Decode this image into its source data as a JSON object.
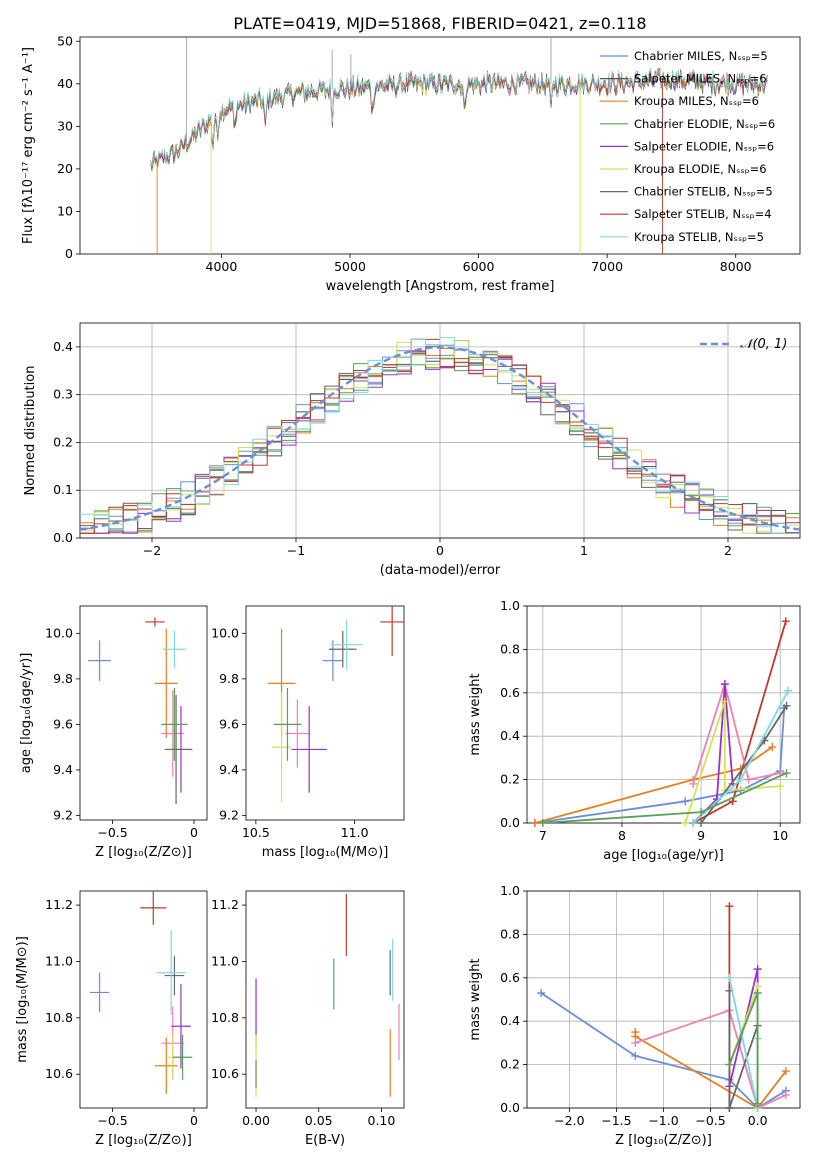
{
  "figure_title": "PLATE=0419, MJD=51868, FIBERID=0421, z=0.118",
  "colors": {
    "spectra": [
      "#6a8fd6",
      "#555555",
      "#e67e22",
      "#5a9e5a",
      "#9b30c8",
      "#d4e157",
      "#666666",
      "#c0392b",
      "#7fd8e0"
    ],
    "params": [
      "#6a8fd6",
      "#e67e22",
      "#c0392b",
      "#ee82b0",
      "#9b30c8",
      "#d4e157",
      "#666666",
      "#7fd8e0",
      "#5a9e5a"
    ],
    "gauss": "#6a8fd6"
  },
  "chart_data": [
    {
      "type": "line",
      "name": "spectrum",
      "title": "PLATE=0419, MJD=51868, FIBERID=0421, z=0.118",
      "xlabel": "wavelength [Angstrom, rest frame]",
      "ylabel": "Flux [fλ10⁻¹⁷ erg cm⁻² s⁻¹ A⁻¹]",
      "xlim": [
        2900,
        8500
      ],
      "ylim": [
        0,
        51
      ],
      "xticks": [
        4000,
        5000,
        6000,
        7000,
        8000
      ],
      "yticks": [
        0,
        10,
        20,
        30,
        40,
        50
      ],
      "grid": false,
      "legend_position": "upper-right",
      "series": [
        {
          "name": "Chabrier MILES, N_SSP=5"
        },
        {
          "name": "Salpeter MILES, N_SSP=6"
        },
        {
          "name": "Kroupa MILES, N_SSP=6"
        },
        {
          "name": "Chabrier ELODIE, N_SSP=6"
        },
        {
          "name": "Salpeter ELODIE, N_SSP=6"
        },
        {
          "name": "Kroupa ELODIE, N_SSP=6"
        },
        {
          "name": "Chabrier STELIB, N_SSP=5"
        },
        {
          "name": "Salpeter STELIB, N_SSP=4"
        },
        {
          "name": "Kroupa STELIB, N_SSP=5"
        }
      ],
      "continuum_points": [
        [
          3450,
          21
        ],
        [
          3650,
          24
        ],
        [
          3900,
          31
        ],
        [
          4000,
          34
        ],
        [
          4300,
          36
        ],
        [
          4600,
          38
        ],
        [
          5000,
          39
        ],
        [
          5500,
          40
        ],
        [
          6000,
          40
        ],
        [
          6500,
          40
        ],
        [
          7000,
          40
        ],
        [
          7500,
          41
        ],
        [
          8000,
          40
        ],
        [
          8250,
          40
        ]
      ]
    },
    {
      "type": "bar",
      "name": "residual-histograms",
      "xlabel": "(data-model)/error",
      "ylabel": "Normed distribution",
      "xlim": [
        -2.5,
        2.5
      ],
      "ylim": [
        0,
        0.45
      ],
      "xticks": [
        -2,
        -1,
        0,
        1,
        2
      ],
      "yticks": [
        0.0,
        0.1,
        0.2,
        0.3,
        0.4
      ],
      "grid": true,
      "legend": "𝒩(0, 1)",
      "legend_position": "upper-right",
      "bin_width": 0.1,
      "bins_from": -2.5
    },
    {
      "type": "scatter",
      "name": "age-vs-Z",
      "xlabel": "Z [log₁₀(Z/Z⊙)]",
      "ylabel": "age  [log₁₀(age/yr)]",
      "xlim": [
        -0.7,
        0.08
      ],
      "ylim": [
        9.18,
        10.12
      ],
      "xticks": [
        -0.5,
        0.0
      ],
      "yticks": [
        9.2,
        9.4,
        9.6,
        9.8,
        10.0
      ],
      "points": [
        {
          "x": -0.58,
          "y": 9.88,
          "xerr": 0.07,
          "yerr": 0.09
        },
        {
          "x": -0.17,
          "y": 9.78,
          "xerr": 0.07,
          "yerr": 0.24
        },
        {
          "x": -0.24,
          "y": 10.05,
          "xerr": 0.06,
          "yerr": 0.02
        },
        {
          "x": -0.13,
          "y": 9.56,
          "xerr": 0.07,
          "yerr": 0.19
        },
        {
          "x": -0.08,
          "y": 9.49,
          "xerr": 0.07,
          "yerr": 0.19
        },
        {
          "x": -0.12,
          "y": 9.6,
          "xerr": 0.03,
          "yerr": 0.15
        },
        {
          "x": -0.11,
          "y": 9.49,
          "xerr": 0.07,
          "yerr": 0.24
        },
        {
          "x": -0.12,
          "y": 9.93,
          "xerr": 0.07,
          "yerr": 0.08
        },
        {
          "x": -0.12,
          "y": 9.6,
          "xerr": 0.08,
          "yerr": 0.16
        }
      ]
    },
    {
      "type": "scatter",
      "name": "age-vs-mass",
      "xlabel": "mass [log₁₀(M/M⊙)]",
      "ylabel": "",
      "xlim": [
        10.45,
        11.25
      ],
      "ylim": [
        9.18,
        10.12
      ],
      "xticks": [
        10.5,
        11.0
      ],
      "yticks": [
        9.2,
        9.4,
        9.6,
        9.8,
        10.0
      ],
      "points": [
        {
          "x": 10.89,
          "y": 9.88,
          "xerr": 0.05,
          "yerr": 0.09
        },
        {
          "x": 10.63,
          "y": 9.78,
          "xerr": 0.07,
          "yerr": 0.24
        },
        {
          "x": 11.19,
          "y": 10.05,
          "xerr": 0.06,
          "yerr": 0.15
        },
        {
          "x": 10.71,
          "y": 9.56,
          "xerr": 0.06,
          "yerr": 0.15
        },
        {
          "x": 10.77,
          "y": 9.49,
          "xerr": 0.09,
          "yerr": 0.19
        },
        {
          "x": 10.63,
          "y": 9.5,
          "xerr": 0.05,
          "yerr": 0.24
        },
        {
          "x": 10.94,
          "y": 9.93,
          "xerr": 0.07,
          "yerr": 0.08
        },
        {
          "x": 10.96,
          "y": 9.95,
          "xerr": 0.08,
          "yerr": 0.11
        },
        {
          "x": 10.66,
          "y": 9.6,
          "xerr": 0.07,
          "yerr": 0.16
        }
      ]
    },
    {
      "type": "line",
      "name": "weight-vs-age",
      "xlabel": "age  [log₁₀(age/yr)]",
      "ylabel": "mass weight",
      "xlim": [
        6.8,
        10.25
      ],
      "ylim": [
        0,
        1
      ],
      "xticks": [
        7,
        8,
        9,
        10
      ],
      "yticks": [
        0.0,
        0.2,
        0.4,
        0.6,
        0.8,
        1.0
      ],
      "grid": true,
      "series": [
        {
          "color_index": 0,
          "points": [
            [
              6.9,
              0.0
            ],
            [
              8.8,
              0.1
            ],
            [
              9.5,
              0.15
            ],
            [
              10.0,
              0.24
            ],
            [
              10.05,
              0.53
            ]
          ]
        },
        {
          "color_index": 1,
          "points": [
            [
              6.9,
              0.0
            ],
            [
              8.9,
              0.2
            ],
            [
              9.5,
              0.25
            ],
            [
              9.9,
              0.35
            ]
          ]
        },
        {
          "color_index": 2,
          "points": [
            [
              8.9,
              0.0
            ],
            [
              9.4,
              0.1
            ],
            [
              10.07,
              0.93
            ]
          ]
        },
        {
          "color_index": 3,
          "points": [
            [
              8.9,
              0.18
            ],
            [
              9.3,
              0.64
            ],
            [
              9.6,
              0.2
            ],
            [
              10.0,
              0.23
            ]
          ]
        },
        {
          "color_index": 4,
          "points": [
            [
              8.9,
              0.0
            ],
            [
              9.2,
              0.11
            ],
            [
              9.3,
              0.64
            ],
            [
              9.4,
              0.18
            ]
          ]
        },
        {
          "color_index": 5,
          "points": [
            [
              8.8,
              0.0
            ],
            [
              9.3,
              0.56
            ],
            [
              9.3,
              0.15
            ],
            [
              10.0,
              0.17
            ]
          ]
        },
        {
          "color_index": 6,
          "points": [
            [
              9.0,
              0.0
            ],
            [
              9.8,
              0.38
            ],
            [
              10.08,
              0.54
            ]
          ]
        },
        {
          "color_index": 7,
          "points": [
            [
              8.9,
              0.0
            ],
            [
              9.5,
              0.2
            ],
            [
              10.1,
              0.61
            ]
          ]
        },
        {
          "color_index": 8,
          "points": [
            [
              7.0,
              0.0
            ],
            [
              9.0,
              0.05
            ],
            [
              10.08,
              0.23
            ]
          ]
        }
      ]
    },
    {
      "type": "scatter",
      "name": "mass-vs-Z",
      "xlabel": "Z [log₁₀(Z/Z⊙)]",
      "ylabel": "mass [log₁₀(M/M⊙)]",
      "xlim": [
        -0.7,
        0.08
      ],
      "ylim": [
        10.48,
        11.25
      ],
      "xticks": [
        -0.5,
        0.0
      ],
      "yticks": [
        10.6,
        10.8,
        11.0,
        11.2
      ],
      "points": [
        {
          "x": -0.58,
          "y": 10.89,
          "xerr": 0.06,
          "yerr": 0.07
        },
        {
          "x": -0.17,
          "y": 10.63,
          "xerr": 0.07,
          "yerr": 0.1
        },
        {
          "x": -0.25,
          "y": 11.19,
          "xerr": 0.08,
          "yerr": 0.06
        },
        {
          "x": -0.13,
          "y": 10.71,
          "xerr": 0.07,
          "yerr": 0.13
        },
        {
          "x": -0.08,
          "y": 10.77,
          "xerr": 0.06,
          "yerr": 0.15
        },
        {
          "x": -0.13,
          "y": 10.66,
          "xerr": 0.03,
          "yerr": 0.08
        },
        {
          "x": -0.12,
          "y": 10.95,
          "xerr": 0.06,
          "yerr": 0.07
        },
        {
          "x": -0.14,
          "y": 10.96,
          "xerr": 0.09,
          "yerr": 0.15
        },
        {
          "x": -0.07,
          "y": 10.66,
          "xerr": 0.06,
          "yerr": 0.08
        }
      ]
    },
    {
      "type": "scatter",
      "name": "mass-vs-ebv",
      "xlabel": "E(B-V)",
      "ylabel": "",
      "xlim": [
        -0.008,
        0.118
      ],
      "ylim": [
        10.48,
        11.25
      ],
      "xticks": [
        0.0,
        0.05,
        0.1
      ],
      "yticks": [
        10.6,
        10.8,
        11.0,
        11.2
      ],
      "points": [
        {
          "x": 0.062,
          "y": 10.92,
          "xerr": 0,
          "yerr": 0.09
        },
        {
          "x": 0.107,
          "y": 10.64,
          "xerr": 0,
          "yerr": 0.12
        },
        {
          "x": 0.072,
          "y": 11.13,
          "xerr": 0,
          "yerr": 0.11
        },
        {
          "x": 0.114,
          "y": 10.75,
          "xerr": 0,
          "yerr": 0.1
        },
        {
          "x": 0.0,
          "y": 10.82,
          "xerr": 0,
          "yerr": 0.12
        },
        {
          "x": 0.0,
          "y": 10.63,
          "xerr": 0,
          "yerr": 0.11
        },
        {
          "x": 0.107,
          "y": 10.96,
          "xerr": 0,
          "yerr": 0.08
        },
        {
          "x": 0.109,
          "y": 10.97,
          "xerr": 0,
          "yerr": 0.11
        },
        {
          "x": 0.0,
          "y": 10.6,
          "xerr": 0,
          "yerr": 0.05
        }
      ]
    },
    {
      "type": "line",
      "name": "weight-vs-Z",
      "xlabel": "Z [log₁₀(Z/Z⊙)]",
      "ylabel": "mass weight",
      "xlim": [
        -2.45,
        0.45
      ],
      "ylim": [
        0,
        1
      ],
      "xticks": [
        -2.0,
        -1.5,
        -1.0,
        -0.5,
        0.0
      ],
      "yticks": [
        0.0,
        0.2,
        0.4,
        0.6,
        0.8,
        1.0
      ],
      "grid": true,
      "series": [
        {
          "color_index": 0,
          "points": [
            [
              -2.3,
              0.53
            ],
            [
              -1.3,
              0.24
            ],
            [
              -0.3,
              0.13
            ],
            [
              0.0,
              0.0
            ],
            [
              0.3,
              0.08
            ]
          ]
        },
        {
          "color_index": 1,
          "points": [
            [
              -1.3,
              0.35
            ],
            [
              -1.3,
              0.33
            ],
            [
              0.0,
              0.0
            ],
            [
              0.3,
              0.17
            ]
          ]
        },
        {
          "color_index": 2,
          "points": [
            [
              -0.3,
              0.93
            ],
            [
              -0.3,
              0.0
            ]
          ]
        },
        {
          "color_index": 3,
          "points": [
            [
              -1.3,
              0.3
            ],
            [
              -0.3,
              0.45
            ],
            [
              0.0,
              0.0
            ],
            [
              0.3,
              0.06
            ]
          ]
        },
        {
          "color_index": 4,
          "points": [
            [
              -0.3,
              0.1
            ],
            [
              0.0,
              0.64
            ],
            [
              0.0,
              0.0
            ]
          ]
        },
        {
          "color_index": 5,
          "points": [
            [
              -0.3,
              0.2
            ],
            [
              0.0,
              0.56
            ],
            [
              0.0,
              0.0
            ]
          ]
        },
        {
          "color_index": 6,
          "points": [
            [
              -0.3,
              0.54
            ],
            [
              -0.3,
              0.0
            ],
            [
              0.0,
              0.38
            ]
          ]
        },
        {
          "color_index": 7,
          "points": [
            [
              -0.3,
              0.6
            ],
            [
              0.0,
              0.0
            ],
            [
              0.0,
              0.32
            ]
          ]
        },
        {
          "color_index": 8,
          "points": [
            [
              -0.3,
              0.2
            ],
            [
              0.0,
              0.53
            ],
            [
              0.0,
              0.02
            ]
          ]
        }
      ]
    }
  ]
}
